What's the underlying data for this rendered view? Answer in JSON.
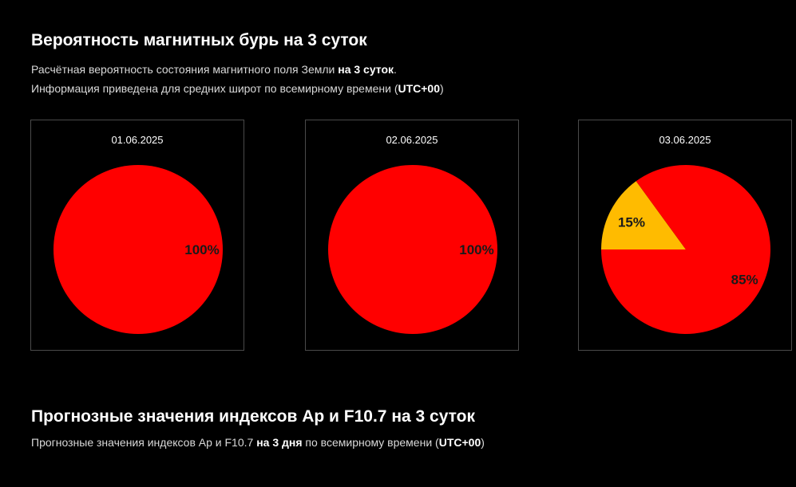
{
  "section1": {
    "title": "Вероятность магнитных бурь на 3 суток",
    "line1_pre": "Расчётная вероятность состояния магнитного поля Земли ",
    "line1_bold": "на 3 суток",
    "line1_post": ".",
    "line2_pre": "Информация приведена для средних широт по всемирному времени (",
    "line2_bold": "UTC+00",
    "line2_post": ")"
  },
  "section2": {
    "title": "Прогнозные значения индексов Ap и F10.7 на 3 суток",
    "line1_pre": "Прогнозные значения индексов Ap и F10.7 ",
    "line1_bold": "на 3 дня",
    "line1_mid": " по всемирному времени (",
    "line1_bold2": "UTC+00",
    "line1_post": ")"
  },
  "colors": {
    "red": "#ff0000",
    "yellow": "#ffbb00"
  },
  "chart_data": [
    {
      "type": "pie",
      "title": "01.06.2025",
      "slices": [
        {
          "value": 100,
          "label": "100%",
          "color": "#ff0000"
        }
      ]
    },
    {
      "type": "pie",
      "title": "02.06.2025",
      "slices": [
        {
          "value": 100,
          "label": "100%",
          "color": "#ff0000"
        }
      ]
    },
    {
      "type": "pie",
      "title": "03.06.2025",
      "slices": [
        {
          "value": 15,
          "label": "15%",
          "color": "#ffbb00"
        },
        {
          "value": 85,
          "label": "85%",
          "color": "#ff0000"
        }
      ]
    }
  ]
}
